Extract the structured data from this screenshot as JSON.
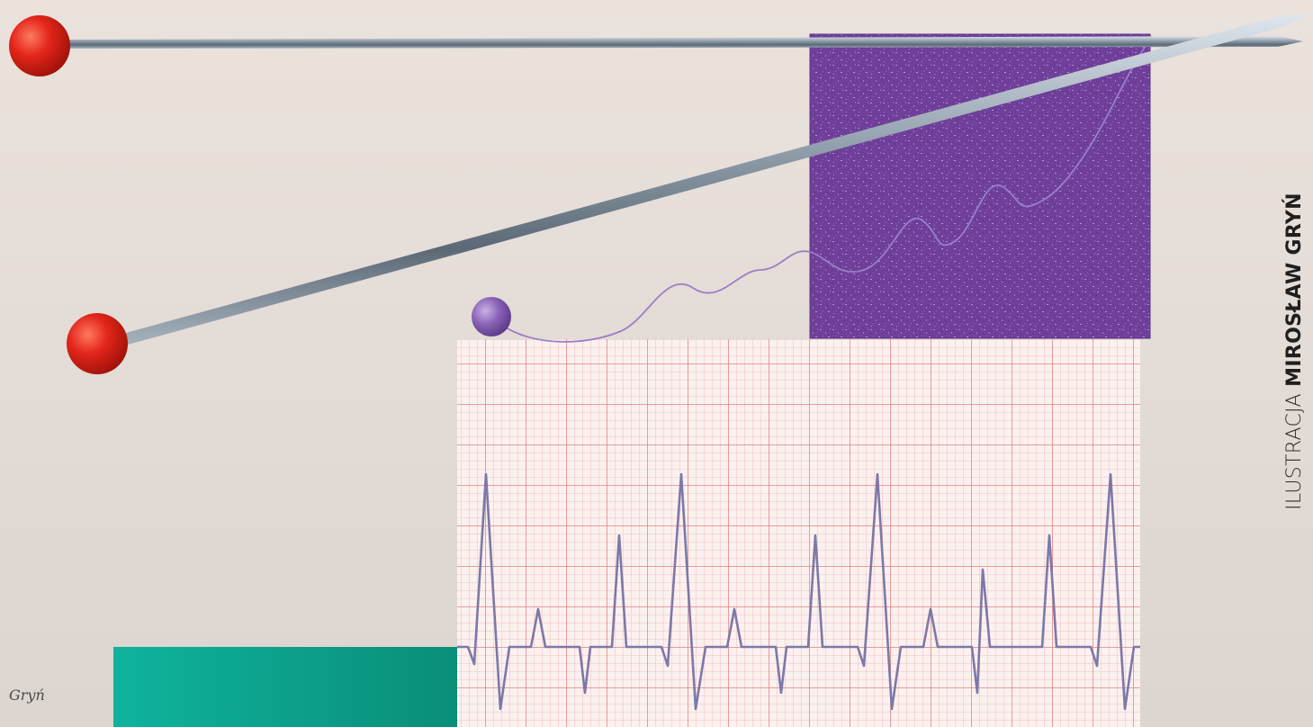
{
  "credit": {
    "prefix": "ILUSTRACJA",
    "artist": "MIROSŁAW GRYŃ"
  },
  "signature": "Gryń",
  "colors": {
    "background_top": "#e9e0da",
    "background_bottom": "#ddd6d1",
    "pin_head": "#e3261b",
    "fabric": "#6f3f9a",
    "yarn_ball": "#8a62b8",
    "ecg_grid": "#e58c8c",
    "ecg_trace": "#7c78a8",
    "teal_block": "#0fa48f"
  },
  "icons": {
    "pins": "sewing-pin-icon",
    "yarn": "yarn-ball-icon",
    "ecg": "ecg-trace-icon"
  }
}
